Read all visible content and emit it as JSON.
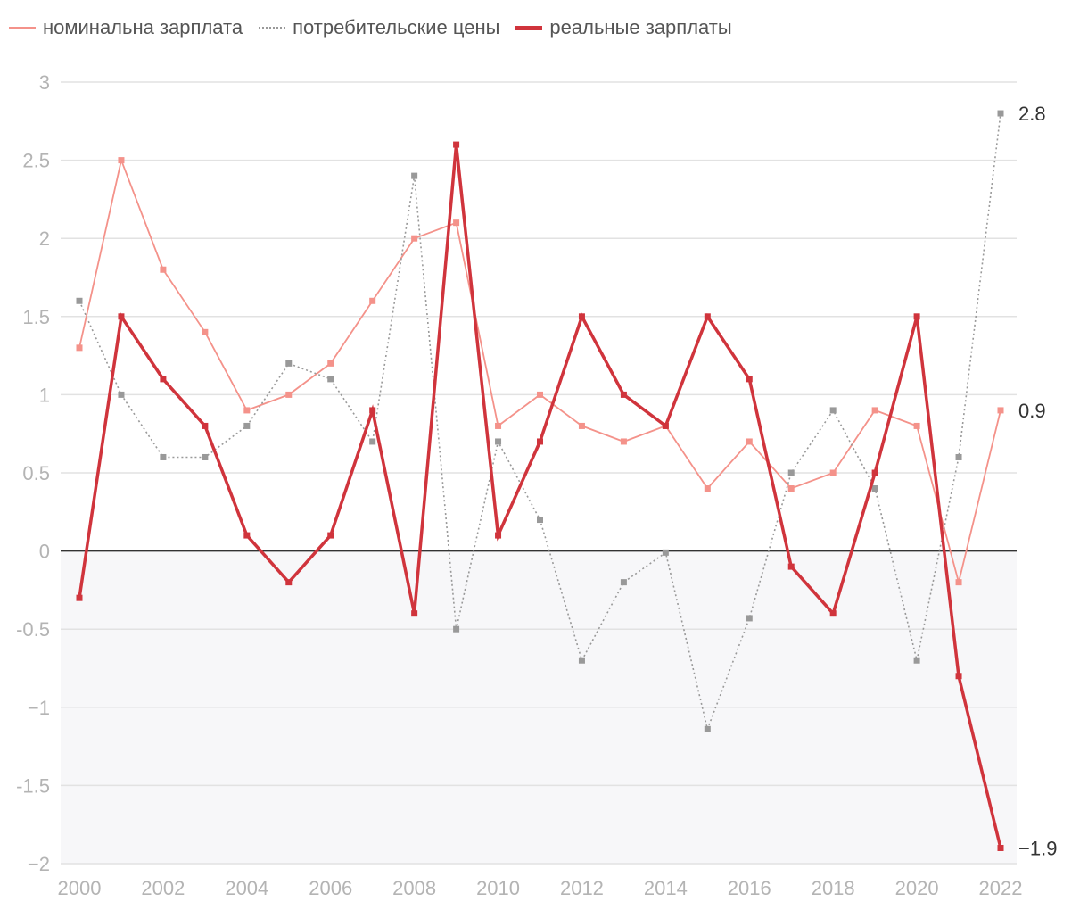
{
  "chart_data": {
    "type": "line",
    "x": [
      2000,
      2001,
      2002,
      2003,
      2004,
      2005,
      2006,
      2007,
      2008,
      2009,
      2010,
      2011,
      2012,
      2013,
      2014,
      2015,
      2016,
      2017,
      2018,
      2019,
      2020,
      2021,
      2022
    ],
    "series": [
      {
        "name": "номинальна зарплата",
        "color": "#f4928a",
        "style": "solid-thin",
        "values": [
          1.3,
          2.5,
          1.8,
          1.4,
          0.9,
          1.0,
          1.2,
          1.6,
          2.0,
          2.1,
          0.8,
          1.0,
          0.8,
          0.7,
          0.8,
          0.4,
          0.7,
          0.4,
          0.5,
          0.9,
          0.8,
          -0.2,
          0.9
        ]
      },
      {
        "name": "потребительские цены",
        "color": "#999999",
        "style": "dotted",
        "values": [
          1.6,
          1.0,
          0.6,
          0.6,
          0.8,
          1.2,
          1.1,
          0.7,
          2.4,
          -0.5,
          0.7,
          0.2,
          -0.7,
          -0.2,
          -0.01,
          -1.14,
          -0.43,
          0.5,
          0.9,
          0.4,
          -0.7,
          0.6,
          2.8
        ]
      },
      {
        "name": "реальные зарплаты",
        "color": "#d0343c",
        "style": "solid-thick",
        "values": [
          -0.3,
          1.5,
          1.1,
          0.8,
          0.1,
          -0.2,
          0.1,
          0.9,
          -0.4,
          2.6,
          0.1,
          0.7,
          1.5,
          1.0,
          0.8,
          1.5,
          1.1,
          -0.1,
          -0.4,
          0.5,
          1.5,
          -0.8,
          -1.9
        ]
      }
    ],
    "ylim": [
      -2,
      3
    ],
    "y_ticks": [
      "3",
      "2.5",
      "2",
      "1.5",
      "1",
      "0.5",
      "0",
      "-0.5",
      "−1",
      "-1.5",
      "−2"
    ],
    "x_ticks": [
      "2000",
      "2002",
      "2004",
      "2006",
      "2008",
      "2010",
      "2012",
      "2014",
      "2016",
      "2018",
      "2020",
      "2022"
    ],
    "end_labels": [
      "2.8",
      "0.9",
      "−1.9"
    ],
    "grid": "horizontal",
    "negative_region_shaded": true,
    "legend_position": "top-left",
    "title": "",
    "xlabel": "",
    "ylabel": ""
  }
}
